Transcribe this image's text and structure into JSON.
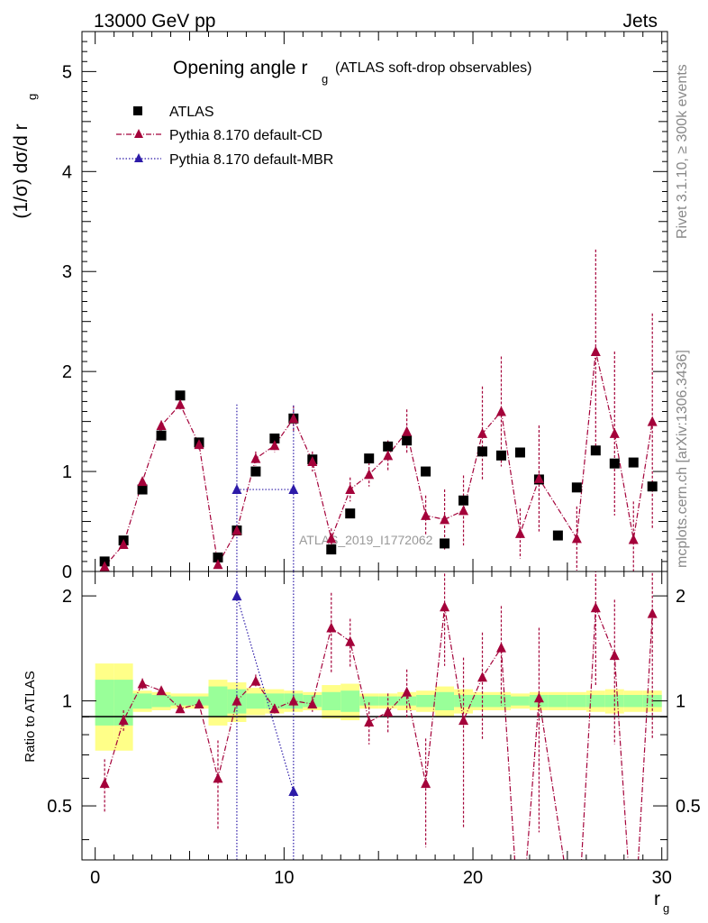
{
  "header": {
    "left": "13000 GeV pp",
    "right": "Jets"
  },
  "side_text": {
    "rivet": "Rivet 3.1.10, ≥ 300k events",
    "mcplots": "mcplots.cern.ch [arXiv:1306.3436]"
  },
  "chart_data": {
    "type": "scatter",
    "title_main": "Opening angle r",
    "title_sub": "g",
    "title_rest": "(ATLAS soft-drop observables)",
    "watermark": "ATLAS_2019_I1772062",
    "xlabel": "r",
    "xlabel_sub": "g",
    "ylabel": "(1/σ) dσ/d r",
    "ylabel_sub": "g",
    "ratio_ylabel": "Ratio to ATLAS",
    "xlim": [
      -0.7,
      30.3
    ],
    "ylim": [
      0,
      5.4
    ],
    "ratio_ylim": [
      0.35,
      2.35
    ],
    "x_ticks": [
      "0",
      "10",
      "20",
      "30"
    ],
    "y_ticks": [
      "0",
      "1",
      "2",
      "3",
      "4",
      "5"
    ],
    "ratio_ticks": [
      "0.5",
      "1",
      "2"
    ],
    "x": [
      0.5,
      1.5,
      2.5,
      3.5,
      4.5,
      5.5,
      6.5,
      7.5,
      8.5,
      9.5,
      10.5,
      11.5,
      12.5,
      13.5,
      14.5,
      15.5,
      16.5,
      17.5,
      18.5,
      19.5,
      20.5,
      21.5,
      22.5,
      23.5,
      24.5,
      25.5,
      26.5,
      27.5,
      28.5,
      29.5
    ],
    "legend": [
      "ATLAS",
      "Pythia 8.170 default-CD",
      "Pythia 8.170 default-MBR"
    ],
    "series": [
      {
        "name": "ATLAS",
        "values": [
          0.1,
          0.31,
          0.82,
          1.36,
          1.76,
          1.29,
          0.14,
          0.41,
          1.0,
          1.33,
          1.53,
          1.12,
          0.22,
          0.58,
          1.13,
          1.25,
          1.31,
          1.0,
          0.28,
          0.71,
          1.2,
          1.16,
          1.19,
          0.92,
          0.36,
          0.84,
          1.21,
          1.08,
          1.09,
          0.85
        ]
      },
      {
        "name": "Pythia 8.170 default-CD",
        "values": [
          0.05,
          0.27,
          0.9,
          1.46,
          1.67,
          1.27,
          0.07,
          0.41,
          1.13,
          1.26,
          1.53,
          1.1,
          0.33,
          0.82,
          0.97,
          1.16,
          1.4,
          0.56,
          0.52,
          0.61,
          1.38,
          1.6,
          0.38,
          0.93,
          null,
          0.33,
          2.2,
          1.38,
          0.32,
          1.5
        ],
        "errors": [
          0.02,
          0.03,
          0.04,
          0.05,
          0.05,
          0.05,
          0.04,
          0.05,
          0.07,
          0.07,
          0.13,
          0.1,
          0.1,
          0.12,
          0.12,
          0.15,
          0.22,
          0.2,
          0.3,
          0.35,
          0.47,
          0.55,
          0.25,
          0.53,
          null,
          0.32,
          1.02,
          0.82,
          0.38,
          1.08
        ],
        "ratio": [
          0.58,
          0.88,
          1.12,
          1.07,
          0.95,
          0.98,
          0.6,
          1.0,
          1.14,
          0.95,
          1.0,
          0.98,
          1.62,
          1.48,
          0.87,
          0.93,
          1.06,
          0.58,
          1.86,
          0.88,
          1.17,
          1.42,
          null,
          1.02,
          null,
          null,
          1.85,
          1.35,
          null,
          1.78
        ],
        "ratio_err": [
          0.1,
          0.06,
          0.04,
          0.02,
          0.02,
          0.02,
          0.17,
          0.04,
          0.05,
          0.03,
          0.07,
          0.05,
          0.42,
          0.24,
          0.12,
          0.12,
          0.17,
          0.2,
          0.6,
          0.45,
          0.4,
          0.45,
          null,
          0.6,
          null,
          null,
          0.75,
          0.6,
          null,
          1.0
        ]
      },
      {
        "name": "Pythia 8.170 default-MBR",
        "values": [
          null,
          null,
          null,
          null,
          null,
          null,
          null,
          0.82,
          null,
          null,
          0.82,
          null,
          null,
          null,
          null,
          null,
          null,
          null,
          null,
          null,
          null,
          null,
          null,
          null,
          null,
          null,
          null,
          null,
          null,
          null
        ],
        "errors": [
          null,
          null,
          null,
          null,
          null,
          null,
          null,
          0.85,
          null,
          null,
          0.84,
          null,
          null,
          null,
          null,
          null,
          null,
          null,
          null,
          null,
          null,
          null,
          null,
          null,
          null,
          null,
          null,
          null,
          null,
          null
        ],
        "ratio": [
          null,
          null,
          null,
          null,
          null,
          null,
          null,
          2.0,
          null,
          null,
          0.55,
          null,
          null,
          null,
          null,
          null,
          null,
          null,
          null,
          null,
          null,
          null,
          null,
          null,
          null,
          null,
          null,
          null,
          null,
          null
        ]
      }
    ],
    "band_inner": [
      0.15,
      0.15,
      0.05,
      0.04,
      0.03,
      0.03,
      0.1,
      0.08,
      0.05,
      0.05,
      0.05,
      0.04,
      0.06,
      0.07,
      0.03,
      0.03,
      0.03,
      0.04,
      0.06,
      0.04,
      0.04,
      0.04,
      0.03,
      0.04,
      0.04,
      0.04,
      0.04,
      0.04,
      0.04,
      0.04
    ],
    "band_outer": [
      0.28,
      0.28,
      0.07,
      0.06,
      0.05,
      0.05,
      0.15,
      0.13,
      0.09,
      0.08,
      0.07,
      0.06,
      0.11,
      0.12,
      0.05,
      0.05,
      0.06,
      0.07,
      0.1,
      0.08,
      0.06,
      0.06,
      0.05,
      0.06,
      0.06,
      0.06,
      0.07,
      0.08,
      0.07,
      0.07
    ],
    "colors": {
      "cd": "#a4023a",
      "mbr": "#2d1ba8",
      "band_inner": "#99ff99",
      "band_outer": "#ffff88"
    }
  }
}
